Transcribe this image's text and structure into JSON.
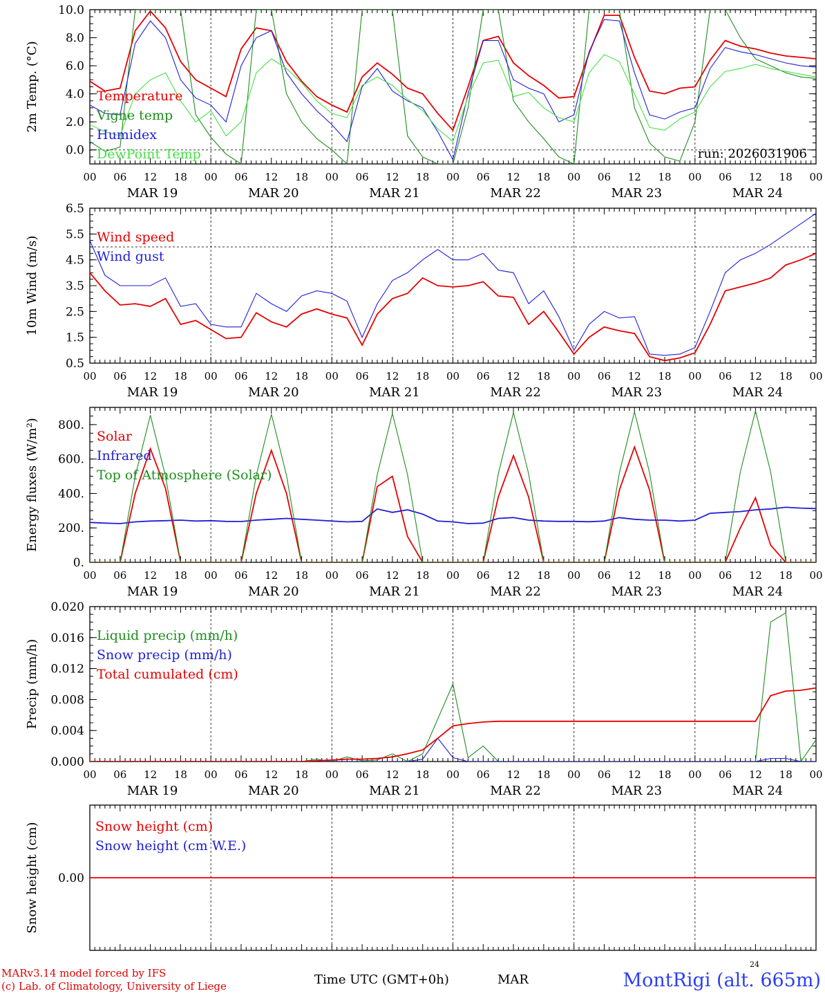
{
  "colors": {
    "red": "#e60000",
    "dark_green": "#1e8c1e",
    "blue": "#1f1fd6",
    "light_green": "#44e044",
    "station": "#2b3ff0",
    "grid": "#555555"
  },
  "time_axis": {
    "hour_ticks": [
      "00",
      "06",
      "12",
      "18",
      "00",
      "06",
      "12",
      "18",
      "00",
      "06",
      "12",
      "18",
      "00",
      "06",
      "12",
      "18",
      "00",
      "06",
      "12",
      "18",
      "00",
      "06",
      "12",
      "18",
      "00"
    ],
    "days": [
      "MAR 19",
      "MAR 20",
      "MAR 21",
      "MAR 22",
      "MAR 23",
      "MAR 24"
    ]
  },
  "footer": {
    "credit_line1": "MARv3.14 model forced by IFS",
    "credit_line2": "(c) Lab. of Climatology, University of Liege",
    "time_label": "Time UTC (GMT+0h)",
    "month": "MAR",
    "day": "24",
    "station": "MontRigi (alt. 665m)"
  },
  "chart_data": [
    {
      "type": "line",
      "ylabel": "2m Temp. (°C)",
      "ylim": [
        -1.0,
        10.0
      ],
      "yticks": [
        "10.0",
        "8.0",
        "6.0",
        "4.0",
        "2.0",
        "0.0"
      ],
      "ytick_values": [
        10,
        8,
        6,
        4,
        2,
        0
      ],
      "reference_line": 0,
      "annotation": "run: 2026031906",
      "x_hours": [
        0,
        3,
        6,
        9,
        12,
        15,
        18,
        21,
        24,
        27,
        30,
        33,
        36,
        39,
        42,
        45,
        48,
        51,
        54,
        57,
        60,
        63,
        66,
        69,
        72,
        75,
        78,
        81,
        84,
        87,
        90,
        93,
        96,
        99,
        102,
        105,
        108,
        111,
        114,
        117,
        120,
        123,
        126,
        129,
        132,
        135,
        138,
        141,
        144
      ],
      "series": [
        {
          "name": "Temperature",
          "color": "red",
          "values": [
            4.9,
            4.2,
            4.4,
            8.5,
            9.9,
            8.7,
            6.3,
            5.0,
            4.4,
            3.8,
            7.2,
            8.7,
            8.5,
            6.3,
            4.9,
            3.8,
            3.2,
            2.7,
            5.2,
            6.2,
            5.4,
            4.4,
            4.0,
            2.6,
            1.4,
            4.5,
            7.8,
            8.1,
            6.2,
            5.3,
            4.6,
            3.7,
            3.8,
            6.9,
            9.6,
            9.6,
            6.6,
            4.2,
            4.0,
            4.4,
            4.5,
            6.4,
            7.8,
            7.4,
            7.2,
            6.9,
            6.7,
            6.6,
            6.5
          ]
        },
        {
          "name": "Vigne temp",
          "color": "dark_green",
          "values": [
            0.6,
            -0.1,
            0.2,
            10.0,
            10.0,
            10.0,
            10.0,
            2.5,
            0.9,
            -0.3,
            -1.0,
            10.0,
            10.0,
            4.0,
            2.0,
            0.8,
            0.0,
            -1.0,
            10.0,
            10.0,
            10.0,
            1.0,
            -0.5,
            -1.0,
            -1.0,
            3.0,
            10.0,
            10.0,
            3.5,
            2.0,
            0.8,
            -0.5,
            -1.0,
            10.0,
            10.0,
            10.0,
            3.0,
            0.5,
            -0.5,
            -0.8,
            2.0,
            10.0,
            10.0,
            8.0,
            6.5,
            6.0,
            5.5,
            5.2,
            5.1
          ]
        },
        {
          "name": "Humidex",
          "color": "blue",
          "values": [
            3.2,
            2.6,
            2.5,
            7.6,
            9.2,
            8.0,
            5.0,
            3.7,
            3.2,
            2.0,
            6.0,
            8.0,
            8.5,
            5.5,
            4.0,
            2.8,
            1.8,
            0.6,
            4.5,
            5.8,
            4.2,
            3.5,
            3.0,
            1.3,
            -0.7,
            4.0,
            7.8,
            7.8,
            5.0,
            4.4,
            4.0,
            2.0,
            2.5,
            7.0,
            9.3,
            9.2,
            5.5,
            2.5,
            2.2,
            2.7,
            3.0,
            5.8,
            7.3,
            7.0,
            6.8,
            6.5,
            6.2,
            6.0,
            5.9
          ]
        },
        {
          "name": "DewPoint Temp",
          "color": "light_green",
          "values": [
            1.8,
            1.3,
            1.0,
            4.0,
            5.0,
            5.5,
            3.5,
            2.0,
            2.8,
            1.0,
            2.0,
            5.5,
            6.5,
            5.8,
            4.8,
            3.5,
            2.6,
            2.3,
            4.6,
            5.2,
            4.6,
            3.6,
            2.8,
            1.5,
            0.6,
            3.8,
            6.2,
            6.4,
            3.8,
            4.1,
            3.0,
            2.3,
            2.0,
            5.5,
            6.8,
            6.3,
            4.0,
            1.6,
            1.4,
            2.2,
            2.7,
            4.5,
            5.6,
            5.8,
            6.1,
            5.8,
            5.6,
            5.4,
            5.2
          ]
        }
      ]
    },
    {
      "type": "line",
      "ylabel": "10m Wind (m/s)",
      "ylim": [
        0.5,
        6.5
      ],
      "yticks": [
        "6.5",
        "5.5",
        "4.5",
        "3.5",
        "2.5",
        "1.5",
        "0.5"
      ],
      "ytick_values": [
        6.5,
        5.5,
        4.5,
        3.5,
        2.5,
        1.5,
        0.5
      ],
      "reference_line": 5.0,
      "x_hours": [
        0,
        3,
        6,
        9,
        12,
        15,
        18,
        21,
        24,
        27,
        30,
        33,
        36,
        39,
        42,
        45,
        48,
        51,
        54,
        57,
        60,
        63,
        66,
        69,
        72,
        75,
        78,
        81,
        84,
        87,
        90,
        93,
        96,
        99,
        102,
        105,
        108,
        111,
        114,
        117,
        120,
        123,
        126,
        129,
        132,
        135,
        138,
        141,
        144
      ],
      "series": [
        {
          "name": "Wind speed",
          "color": "red",
          "values": [
            4.0,
            3.3,
            2.75,
            2.8,
            2.7,
            3.0,
            2.0,
            2.15,
            1.8,
            1.45,
            1.5,
            2.45,
            2.1,
            1.9,
            2.4,
            2.6,
            2.4,
            2.25,
            1.2,
            2.4,
            3.0,
            3.2,
            3.8,
            3.5,
            3.45,
            3.5,
            3.65,
            3.1,
            3.05,
            2.0,
            2.5,
            1.7,
            0.85,
            1.5,
            1.9,
            1.75,
            1.65,
            0.75,
            0.6,
            0.7,
            0.9,
            2.0,
            3.3,
            3.45,
            3.6,
            3.8,
            4.3,
            4.5,
            4.75
          ]
        },
        {
          "name": "Wind gust",
          "color": "blue",
          "values": [
            5.25,
            3.9,
            3.5,
            3.5,
            3.5,
            3.8,
            2.7,
            2.8,
            2.0,
            1.9,
            1.9,
            3.2,
            2.8,
            2.5,
            3.1,
            3.3,
            3.2,
            2.9,
            1.5,
            2.8,
            3.7,
            4.0,
            4.5,
            4.9,
            4.5,
            4.5,
            4.75,
            4.1,
            4.0,
            2.8,
            3.3,
            2.3,
            1.0,
            2.0,
            2.5,
            2.25,
            2.3,
            0.85,
            0.8,
            0.85,
            1.1,
            2.5,
            4.0,
            4.5,
            4.75,
            5.1,
            5.5,
            5.9,
            6.3
          ]
        }
      ]
    },
    {
      "type": "line",
      "ylabel": "Energy fluxes (W/m²)",
      "ylim": [
        0,
        900
      ],
      "yticks": [
        "800.",
        "600.",
        "400.",
        "200.",
        "0."
      ],
      "ytick_values": [
        800,
        600,
        400,
        200,
        0
      ],
      "x_hours": [
        0,
        3,
        6,
        9,
        12,
        15,
        18,
        21,
        24,
        27,
        30,
        33,
        36,
        39,
        42,
        45,
        48,
        51,
        54,
        57,
        60,
        63,
        66,
        69,
        72,
        75,
        78,
        81,
        84,
        87,
        90,
        93,
        96,
        99,
        102,
        105,
        108,
        111,
        114,
        117,
        120,
        123,
        126,
        129,
        132,
        135,
        138,
        141,
        144
      ],
      "series": [
        {
          "name": "Solar",
          "color": "red",
          "values": [
            0,
            0,
            0,
            400,
            660,
            430,
            0,
            0,
            0,
            0,
            0,
            400,
            650,
            400,
            0,
            0,
            0,
            0,
            0,
            440,
            500,
            150,
            0,
            0,
            0,
            0,
            0,
            380,
            620,
            380,
            0,
            0,
            0,
            0,
            0,
            420,
            670,
            420,
            0,
            0,
            0,
            0,
            0,
            200,
            375,
            100,
            0,
            0,
            0
          ]
        },
        {
          "name": "Infrared",
          "color": "blue",
          "values": [
            232,
            228,
            225,
            235,
            240,
            242,
            245,
            240,
            242,
            238,
            237,
            245,
            250,
            255,
            250,
            245,
            240,
            235,
            238,
            310,
            290,
            305,
            280,
            240,
            235,
            225,
            228,
            255,
            260,
            245,
            240,
            238,
            238,
            236,
            240,
            260,
            250,
            245,
            245,
            240,
            245,
            285,
            290,
            295,
            305,
            310,
            320,
            315,
            312
          ]
        },
        {
          "name": "Top of Atmosphere (Solar)",
          "color": "dark_green",
          "values": [
            0,
            0,
            0,
            500,
            855,
            500,
            0,
            0,
            0,
            0,
            0,
            505,
            860,
            505,
            0,
            0,
            0,
            0,
            0,
            510,
            865,
            510,
            0,
            0,
            0,
            0,
            0,
            515,
            870,
            515,
            0,
            0,
            0,
            0,
            0,
            520,
            875,
            520,
            0,
            0,
            0,
            0,
            0,
            525,
            880,
            525,
            0,
            0,
            0
          ]
        }
      ]
    },
    {
      "type": "line",
      "ylabel": "Precip (mm/h)",
      "ylim": [
        0.0,
        0.02
      ],
      "yticks": [
        "0.020",
        "0.016",
        "0.012",
        "0.008",
        "0.004",
        "0.000"
      ],
      "ytick_values": [
        0.02,
        0.016,
        0.012,
        0.008,
        0.004,
        0.0
      ],
      "x_hours": [
        0,
        3,
        6,
        9,
        12,
        15,
        18,
        21,
        24,
        27,
        30,
        33,
        36,
        39,
        42,
        45,
        48,
        51,
        54,
        57,
        60,
        63,
        66,
        69,
        72,
        75,
        78,
        81,
        84,
        87,
        90,
        93,
        96,
        99,
        102,
        105,
        108,
        111,
        114,
        117,
        120,
        123,
        126,
        129,
        132,
        135,
        138,
        141,
        144
      ],
      "series": [
        {
          "name": "Liquid precip (mm/h)",
          "color": "dark_green",
          "values": [
            0,
            0,
            0,
            0,
            0,
            0,
            0,
            0,
            0,
            0,
            0,
            0,
            0,
            0,
            0,
            0.0003,
            0,
            0.0006,
            0.0001,
            0.0002,
            0.001,
            0,
            0.001,
            0.0055,
            0.01,
            0.0005,
            0.002,
            0,
            0,
            0,
            0,
            0,
            0,
            0,
            0,
            0,
            0,
            0,
            0,
            0,
            0,
            0,
            0,
            0,
            0,
            0.018,
            0.0192,
            0,
            0.0028
          ]
        },
        {
          "name": "Snow precip (mm/h)",
          "color": "blue",
          "values": [
            0,
            0,
            0,
            0,
            0,
            0,
            0,
            0,
            0,
            0,
            0,
            0,
            0,
            0,
            0,
            0,
            0,
            0,
            0,
            0,
            0,
            0,
            0.0003,
            0.003,
            0.0005,
            0,
            0,
            0,
            0,
            0,
            0,
            0,
            0,
            0,
            0,
            0,
            0,
            0,
            0,
            0,
            0,
            0,
            0,
            0,
            0,
            0.0004,
            0.0004,
            0,
            0
          ]
        },
        {
          "name": "Total cumulated (cm)",
          "color": "red",
          "values": [
            0,
            0,
            0,
            0,
            0,
            0,
            0,
            0,
            0,
            0,
            0,
            0,
            0,
            0,
            0,
            0.0001,
            0.0002,
            0.0003,
            0.0003,
            0.0004,
            0.0006,
            0.001,
            0.0015,
            0.003,
            0.0046,
            0.0049,
            0.0051,
            0.0052,
            0.0052,
            0.0052,
            0.0052,
            0.0052,
            0.0052,
            0.0052,
            0.0052,
            0.0052,
            0.0052,
            0.0052,
            0.0052,
            0.0052,
            0.0052,
            0.0052,
            0.0052,
            0.0052,
            0.0052,
            0.0085,
            0.0091,
            0.0092,
            0.0095
          ]
        }
      ]
    },
    {
      "type": "line",
      "ylabel": "Snow height (cm)",
      "ylim": [
        -0.01,
        0.01
      ],
      "yticks": [
        "0.00"
      ],
      "ytick_values": [
        0
      ],
      "x_hours": [
        0,
        144
      ],
      "series": [
        {
          "name": "Snow height (cm)",
          "color": "red",
          "values": [
            0,
            0
          ]
        },
        {
          "name": "Snow height (cm W.E.)",
          "color": "blue",
          "values": []
        }
      ]
    }
  ]
}
